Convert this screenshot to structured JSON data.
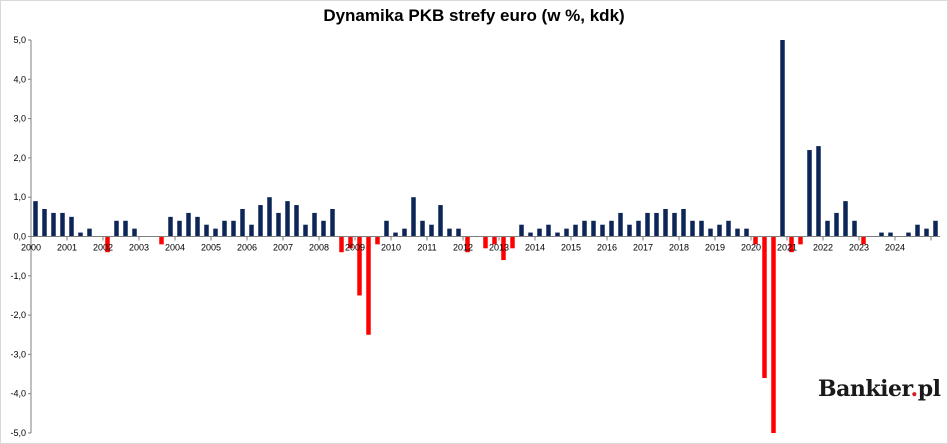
{
  "chart_data": {
    "type": "bar",
    "title": "Dynamika PKB strefy euro (w %, kdk)",
    "xlabel": "",
    "ylabel": "",
    "ylim": [
      -5,
      5
    ],
    "yticks": [
      "5,0",
      "4,0",
      "3,0",
      "2,0",
      "1,0",
      "0,0",
      "-1,0",
      "-2,0",
      "-3,0",
      "-4,0",
      "-5,0"
    ],
    "year_labels": [
      "2000",
      "2001",
      "2002",
      "2003",
      "2004",
      "2005",
      "2006",
      "2007",
      "2008",
      "2009",
      "2010",
      "2011",
      "2012",
      "2013",
      "2014",
      "2015",
      "2016",
      "2017",
      "2018",
      "2019",
      "2020",
      "2021",
      "2022",
      "2023",
      "2024"
    ],
    "quarters_per_year": 4,
    "values": [
      0.9,
      0.7,
      0.6,
      0.6,
      0.5,
      0.1,
      0.2,
      0.0,
      -0.4,
      0.4,
      0.4,
      0.2,
      0.0,
      0.0,
      -0.2,
      0.5,
      0.4,
      0.6,
      0.5,
      0.3,
      0.2,
      0.4,
      0.4,
      0.7,
      0.3,
      0.8,
      1.0,
      0.6,
      0.9,
      0.8,
      0.3,
      0.6,
      0.4,
      0.7,
      -0.4,
      -0.3,
      -1.5,
      -2.5,
      -0.2,
      0.4,
      0.1,
      0.2,
      1.0,
      0.4,
      0.3,
      0.8,
      0.2,
      0.2,
      -0.4,
      0.0,
      -0.3,
      -0.2,
      -0.6,
      -0.3,
      0.3,
      0.1,
      0.2,
      0.3,
      0.1,
      0.2,
      0.3,
      0.4,
      0.4,
      0.3,
      0.4,
      0.6,
      0.3,
      0.4,
      0.6,
      0.6,
      0.7,
      0.6,
      0.7,
      0.4,
      0.4,
      0.2,
      0.3,
      0.4,
      0.2,
      0.2,
      -0.2,
      -3.6,
      -5.0,
      5.0,
      -0.4,
      -0.2,
      2.2,
      2.3,
      0.4,
      0.6,
      0.9,
      0.4,
      -0.2,
      0.0,
      0.1,
      0.1,
      0.0,
      0.1,
      0.3,
      0.2,
      0.4
    ],
    "colors": {
      "positive": "#0d2557",
      "negative": "#ff0000",
      "axis": "#7f7f7f",
      "grid": "#d9d9d9"
    },
    "grid": false,
    "legend": "none"
  },
  "logo": {
    "text": "Bankier",
    "suffix": "pl",
    "dot": "."
  }
}
